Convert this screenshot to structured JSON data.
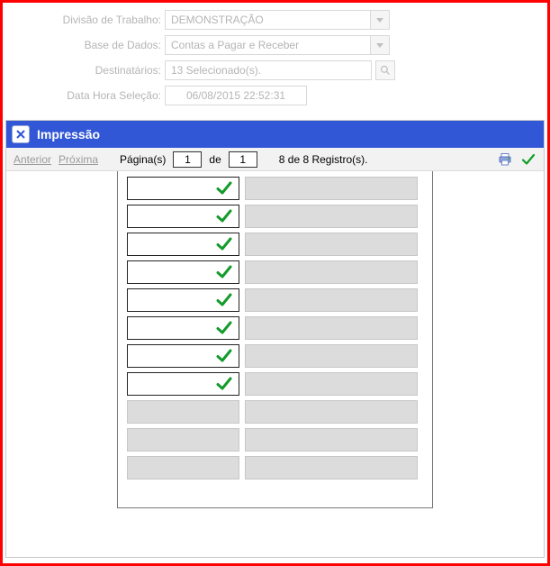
{
  "form": {
    "divisao_label": "Divisão de Trabalho:",
    "divisao_value": "DEMONSTRAÇÃO",
    "base_label": "Base de Dados:",
    "base_value": "Contas a Pagar e Receber",
    "dest_label": "Destinatários:",
    "dest_value": "13 Selecionado(s).",
    "datahora_label": "Data Hora Seleção:",
    "datahora_value": "06/08/2015 22:52:31"
  },
  "panel": {
    "title": "Impressão"
  },
  "toolbar": {
    "prev": "Anterior",
    "next": "Próxima",
    "pages_label": "Página(s)",
    "page_current": "1",
    "of_label": "de",
    "page_total": "1",
    "records_text": "8 de 8 Registro(s)."
  },
  "grid": {
    "total_rows": 11,
    "checked_rows": 8,
    "row_states": [
      true,
      true,
      true,
      true,
      true,
      true,
      true,
      true,
      false,
      false,
      false
    ]
  },
  "icons": {
    "close": "close-icon",
    "search": "search-icon",
    "print": "print-icon",
    "confirm": "confirm-check-icon",
    "row_check": "check-icon"
  },
  "colors": {
    "frame_border": "#ff0000",
    "header_bg": "#3157d6",
    "header_text": "#ffffff",
    "disabled_text": "#b5b5b5",
    "cell_gray": "#dcdcdc",
    "check_green": "#149b2b",
    "toolbar_bg": "#f2f2f2"
  }
}
